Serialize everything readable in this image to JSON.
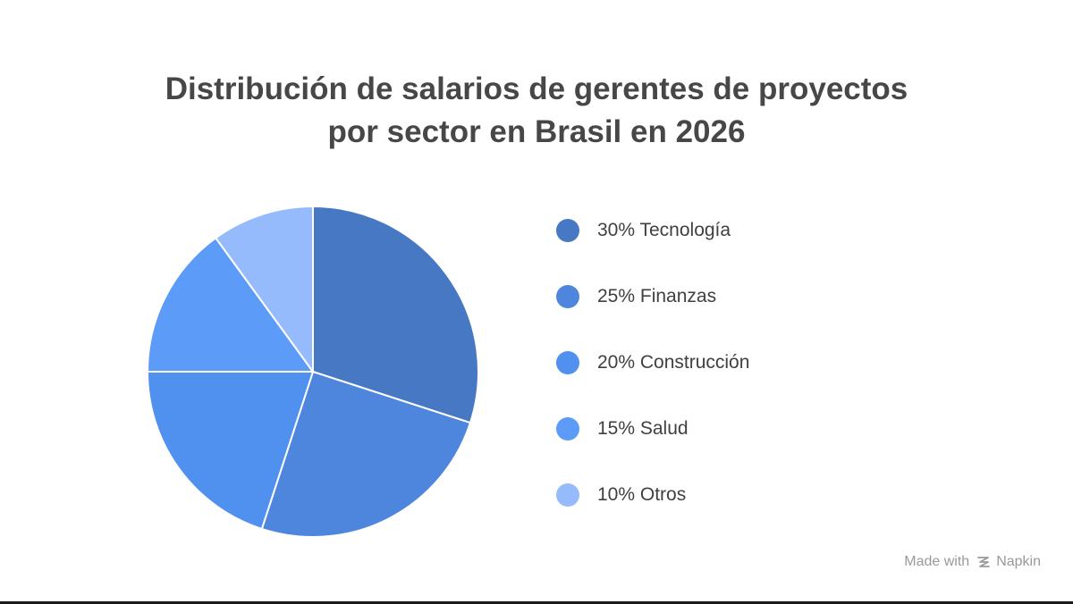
{
  "chart_data": {
    "type": "pie",
    "title_lines": [
      "Distribución de salarios de gerentes de proyectos",
      "por sector en Brasil en 2026"
    ],
    "slices": [
      {
        "label": "30% Tecnología",
        "value": 30,
        "color": "#4778C4"
      },
      {
        "label": "25% Finanzas",
        "value": 25,
        "color": "#4F86DD"
      },
      {
        "label": "20% Construcción",
        "value": 20,
        "color": "#5090EF"
      },
      {
        "label": "15% Salud",
        "value": 15,
        "color": "#5C9CF8"
      },
      {
        "label": "10% Otros",
        "value": 10,
        "color": "#96BBFC"
      }
    ],
    "start_angle": "12 o'clock",
    "direction": "clockwise",
    "legend_position": "right"
  },
  "watermark": {
    "prefix": "Made with",
    "brand": "Napkin",
    "icon": "napkin-logo-icon"
  }
}
